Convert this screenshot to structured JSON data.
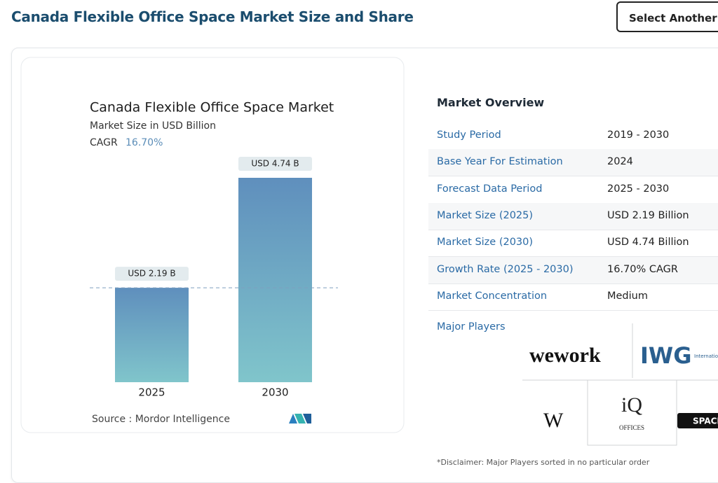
{
  "header": {
    "title": "Canada Flexible Office Space Market Size and Share",
    "button": "Select Another"
  },
  "chart_data": {
    "type": "bar",
    "title": "Canada Flexible Office Space Market",
    "subtitle": "Market Size in USD Billion",
    "cagr_label": "CAGR",
    "cagr_value": "16.70%",
    "categories": [
      "2025",
      "2030"
    ],
    "values": [
      2.19,
      4.74
    ],
    "value_labels": [
      "USD 2.19 B",
      "USD 4.74 B"
    ],
    "source": "Source :  Mordor Intelligence"
  },
  "overview": {
    "title": "Market Overview",
    "rows": [
      [
        "Study Period",
        "2019 - 2030"
      ],
      [
        "Base Year For Estimation",
        "2024"
      ],
      [
        "Forecast Data Period",
        "2025 - 2030"
      ],
      [
        "Market Size (2025)",
        "USD 2.19 Billion"
      ],
      [
        "Market Size (2030)",
        "USD 4.74 Billion"
      ],
      [
        "Growth Rate (2025 - 2030)",
        "16.70% CAGR"
      ],
      [
        "Market Concentration",
        "Medium"
      ]
    ],
    "players_label": "Major Players",
    "players": [
      "wework",
      "IWG",
      "International Workplace Group",
      "W",
      "iQ",
      "OFFICES",
      "SPACES"
    ],
    "disclaimer": "*Disclaimer: Major Players sorted in no particular order"
  }
}
